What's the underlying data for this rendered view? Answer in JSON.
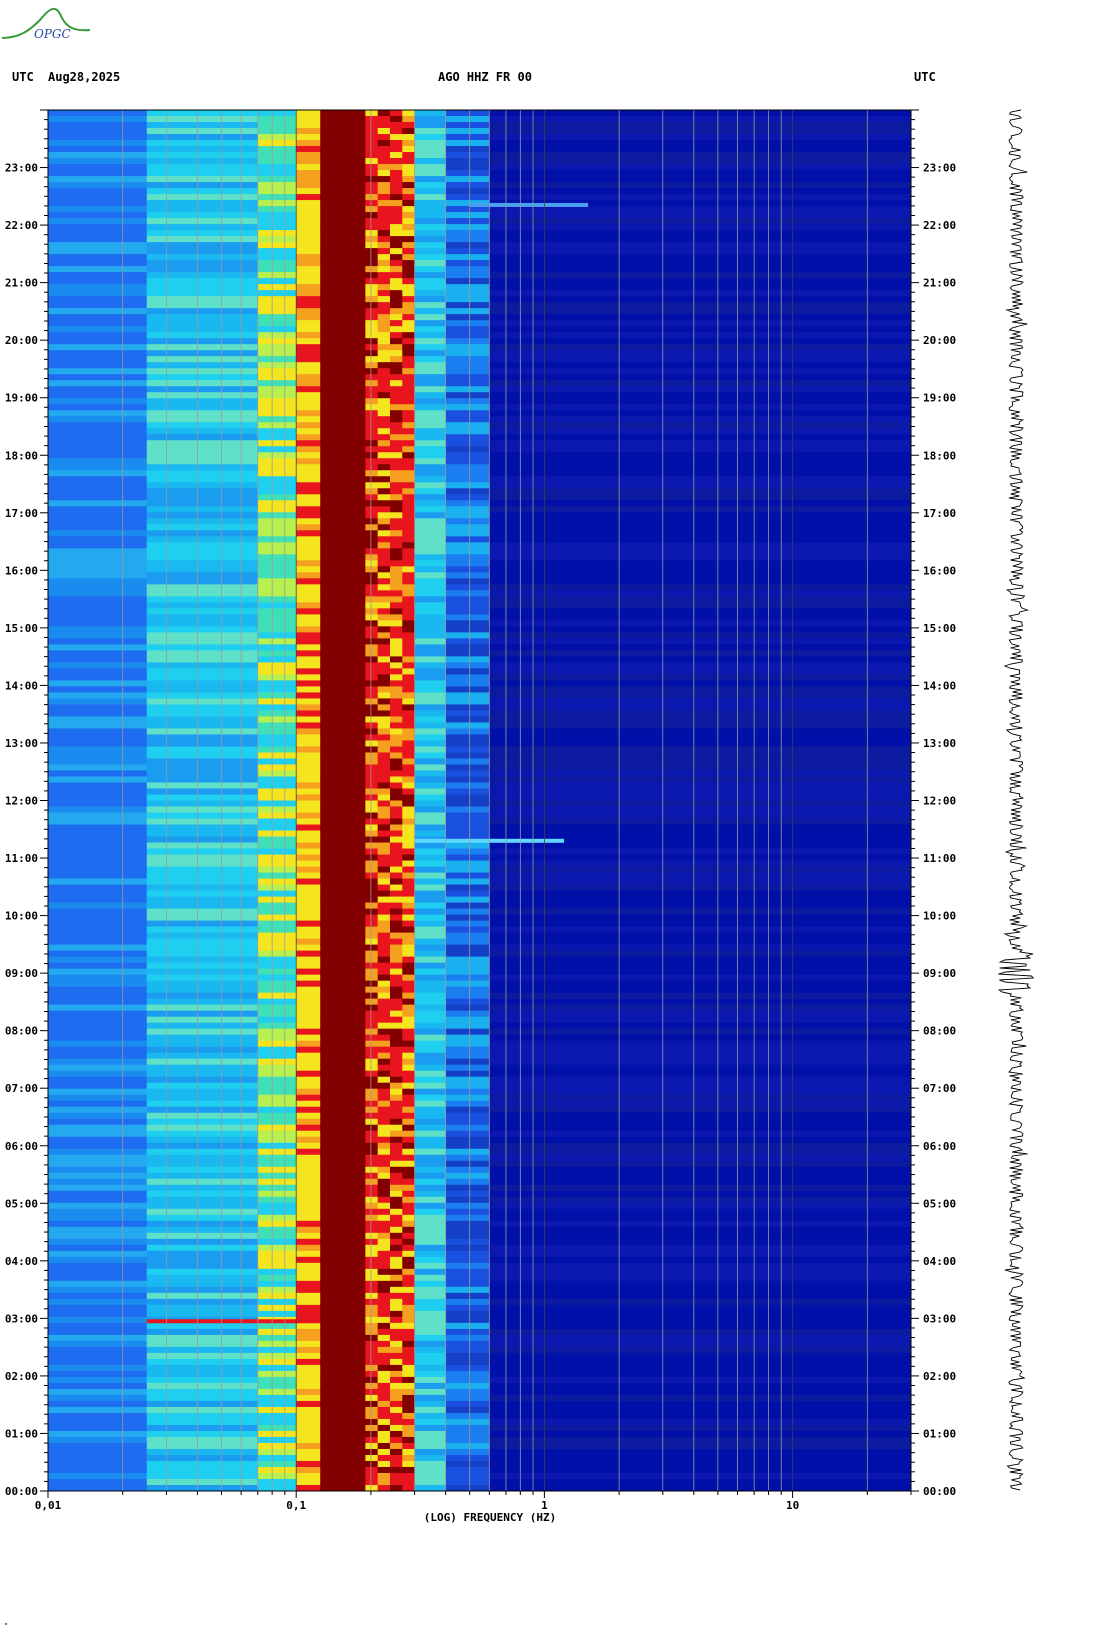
{
  "logo_text": "OPGC",
  "header": {
    "left_timezone": "UTC",
    "date": "Aug28,2025",
    "station": "AGO HHZ FR 00",
    "right_timezone": "UTC"
  },
  "footer_mark": "\"",
  "colors": {
    "background_low": "#0010a8",
    "low": "#1e6cf0",
    "mid": "#1ecff0",
    "high_yellow": "#f5e51e",
    "high_red": "#e8141e",
    "max": "#820000",
    "logo_green": "#3a9a3a",
    "logo_blue": "#2a4a9a"
  },
  "chart_data": {
    "type": "heatmap",
    "title": "AGO HHZ FR 00",
    "xlabel": "(LOG) FREQUENCY (HZ)",
    "ylabel": "UTC",
    "x_scale": "log",
    "xlim": [
      0.01,
      30
    ],
    "x_ticks": [
      {
        "value": 0.01,
        "label": "0,01"
      },
      {
        "value": 0.1,
        "label": "0,1"
      },
      {
        "value": 1,
        "label": "1"
      },
      {
        "value": 10,
        "label": "10"
      }
    ],
    "ylim_hours": [
      0,
      24
    ],
    "y_ticks": [
      {
        "hour": 0,
        "label": "00:00"
      },
      {
        "hour": 1,
        "label": "01:00"
      },
      {
        "hour": 2,
        "label": "02:00"
      },
      {
        "hour": 3,
        "label": "03:00"
      },
      {
        "hour": 4,
        "label": "04:00"
      },
      {
        "hour": 5,
        "label": "05:00"
      },
      {
        "hour": 6,
        "label": "06:00"
      },
      {
        "hour": 7,
        "label": "07:00"
      },
      {
        "hour": 8,
        "label": "08:00"
      },
      {
        "hour": 9,
        "label": "09:00"
      },
      {
        "hour": 10,
        "label": "10:00"
      },
      {
        "hour": 11,
        "label": "11:00"
      },
      {
        "hour": 12,
        "label": "12:00"
      },
      {
        "hour": 13,
        "label": "13:00"
      },
      {
        "hour": 14,
        "label": "14:00"
      },
      {
        "hour": 15,
        "label": "15:00"
      },
      {
        "hour": 16,
        "label": "16:00"
      },
      {
        "hour": 17,
        "label": "17:00"
      },
      {
        "hour": 18,
        "label": "18:00"
      },
      {
        "hour": 19,
        "label": "19:00"
      },
      {
        "hour": 20,
        "label": "20:00"
      },
      {
        "hour": 21,
        "label": "21:00"
      },
      {
        "hour": 22,
        "label": "22:00"
      },
      {
        "hour": 23,
        "label": "23:00"
      }
    ],
    "frequency_bands": [
      {
        "f_from": 0.01,
        "f_to": 0.025,
        "level": "low-blue"
      },
      {
        "f_from": 0.025,
        "f_to": 0.07,
        "level": "cyan"
      },
      {
        "f_from": 0.07,
        "f_to": 0.1,
        "level": "cyan-yellow"
      },
      {
        "f_from": 0.1,
        "f_to": 0.125,
        "level": "yellow-red"
      },
      {
        "f_from": 0.125,
        "f_to": 0.19,
        "level": "max"
      },
      {
        "f_from": 0.19,
        "f_to": 0.3,
        "level": "red-yellow"
      },
      {
        "f_from": 0.3,
        "f_to": 0.4,
        "level": "cyan"
      },
      {
        "f_from": 0.4,
        "f_to": 0.6,
        "level": "blue"
      },
      {
        "f_from": 0.6,
        "f_to": 30,
        "level": "background"
      }
    ],
    "events": [
      {
        "hour": 2.95,
        "f_from": 0.025,
        "f_to": 0.125,
        "level": "red"
      },
      {
        "hour": 11.3,
        "f_from": 0.3,
        "f_to": 1.2,
        "level": "bright"
      },
      {
        "hour": 22.35,
        "f_from": 0.5,
        "f_to": 1.5,
        "level": "light"
      }
    ],
    "grid": true
  }
}
